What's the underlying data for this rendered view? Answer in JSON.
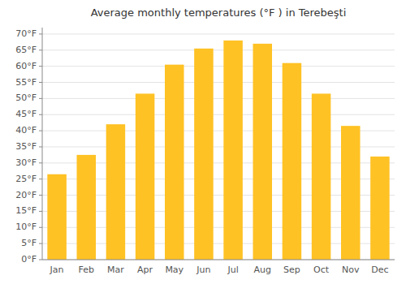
{
  "chart_data": {
    "type": "bar",
    "title": "Average monthly temperatures (°F ) in Terebeşti",
    "categories": [
      "Jan",
      "Feb",
      "Mar",
      "Apr",
      "May",
      "Jun",
      "Jul",
      "Aug",
      "Sep",
      "Oct",
      "Nov",
      "Dec"
    ],
    "values": [
      26.5,
      32.5,
      42.0,
      51.5,
      60.5,
      65.5,
      68.0,
      67.0,
      61.0,
      51.5,
      41.5,
      32.0
    ],
    "color": "#FFC224",
    "ylim": [
      0,
      72
    ],
    "yticks": [
      {
        "value": 0,
        "label": "0°F"
      },
      {
        "value": 5,
        "label": "5°F"
      },
      {
        "value": 10,
        "label": "10°F"
      },
      {
        "value": 15,
        "label": "15°F"
      },
      {
        "value": 20,
        "label": "20°F"
      },
      {
        "value": 25,
        "label": "25°F"
      },
      {
        "value": 30,
        "label": "30°F"
      },
      {
        "value": 35,
        "label": "35°F"
      },
      {
        "value": 40,
        "label": "40°F"
      },
      {
        "value": 45,
        "label": "45°F"
      },
      {
        "value": 50,
        "label": "50°F"
      },
      {
        "value": 55,
        "label": "55°F"
      },
      {
        "value": 60,
        "label": "60°F"
      },
      {
        "value": 65,
        "label": "65°F"
      },
      {
        "value": 70,
        "label": "70°F"
      }
    ],
    "grid": true
  }
}
